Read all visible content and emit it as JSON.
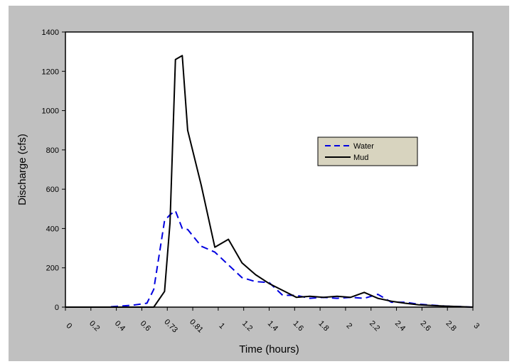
{
  "colors": {
    "figure_background": "#c0c0c0",
    "plot_background": "#ffffff",
    "legend_background": "#d8d4bf",
    "water": "#0000e0",
    "mud": "#000000"
  },
  "chart_data": {
    "type": "line",
    "title": "",
    "xlabel": "Time (hours)",
    "ylabel": "Discharge (cfs)",
    "ylim": [
      0,
      1400
    ],
    "yticks": [
      "0",
      "200",
      "400",
      "600",
      "800",
      "1000",
      "1200",
      "1400"
    ],
    "xticks": [
      "0",
      "0.2",
      "0.4",
      "0.6",
      "0.73",
      "0.81",
      "1",
      "1.2",
      "1.4",
      "1.6",
      "1.8",
      "2",
      "2.2",
      "2.4",
      "2.6",
      "2.8",
      "3"
    ],
    "grid": false,
    "legend_position": "right",
    "series": [
      {
        "name": "Water",
        "style": "dashed",
        "x": [
          0,
          0.1,
          0.2,
          0.3,
          0.4,
          0.5,
          0.6,
          0.65,
          0.73,
          0.77,
          0.81,
          0.86,
          0.9,
          1.0,
          1.1,
          1.2,
          1.3,
          1.4,
          1.5,
          1.6,
          1.7,
          1.8,
          1.9,
          2.0,
          2.1,
          2.2,
          2.3,
          2.4,
          2.5,
          2.6,
          2.7,
          2.8,
          2.9,
          3.0
        ],
        "values": [
          0,
          0,
          0,
          0,
          5,
          10,
          20,
          90,
          440,
          470,
          490,
          400,
          395,
          310,
          280,
          215,
          150,
          130,
          125,
          60,
          60,
          45,
          50,
          45,
          50,
          45,
          65,
          25,
          25,
          15,
          10,
          5,
          3,
          0
        ]
      },
      {
        "name": "Mud",
        "style": "solid",
        "x": [
          0,
          0.1,
          0.2,
          0.3,
          0.4,
          0.5,
          0.6,
          0.65,
          0.73,
          0.77,
          0.81,
          0.86,
          0.9,
          1.0,
          1.1,
          1.2,
          1.3,
          1.4,
          1.5,
          1.6,
          1.7,
          1.8,
          1.9,
          2.0,
          2.1,
          2.2,
          2.3,
          2.4,
          2.5,
          2.6,
          2.7,
          2.8,
          2.9,
          3.0
        ],
        "values": [
          0,
          0,
          0,
          0,
          0,
          0,
          0,
          0,
          80,
          430,
          1260,
          1280,
          900,
          620,
          305,
          345,
          225,
          165,
          120,
          85,
          50,
          55,
          50,
          55,
          50,
          75,
          45,
          30,
          20,
          12,
          8,
          5,
          3,
          0
        ]
      }
    ]
  }
}
